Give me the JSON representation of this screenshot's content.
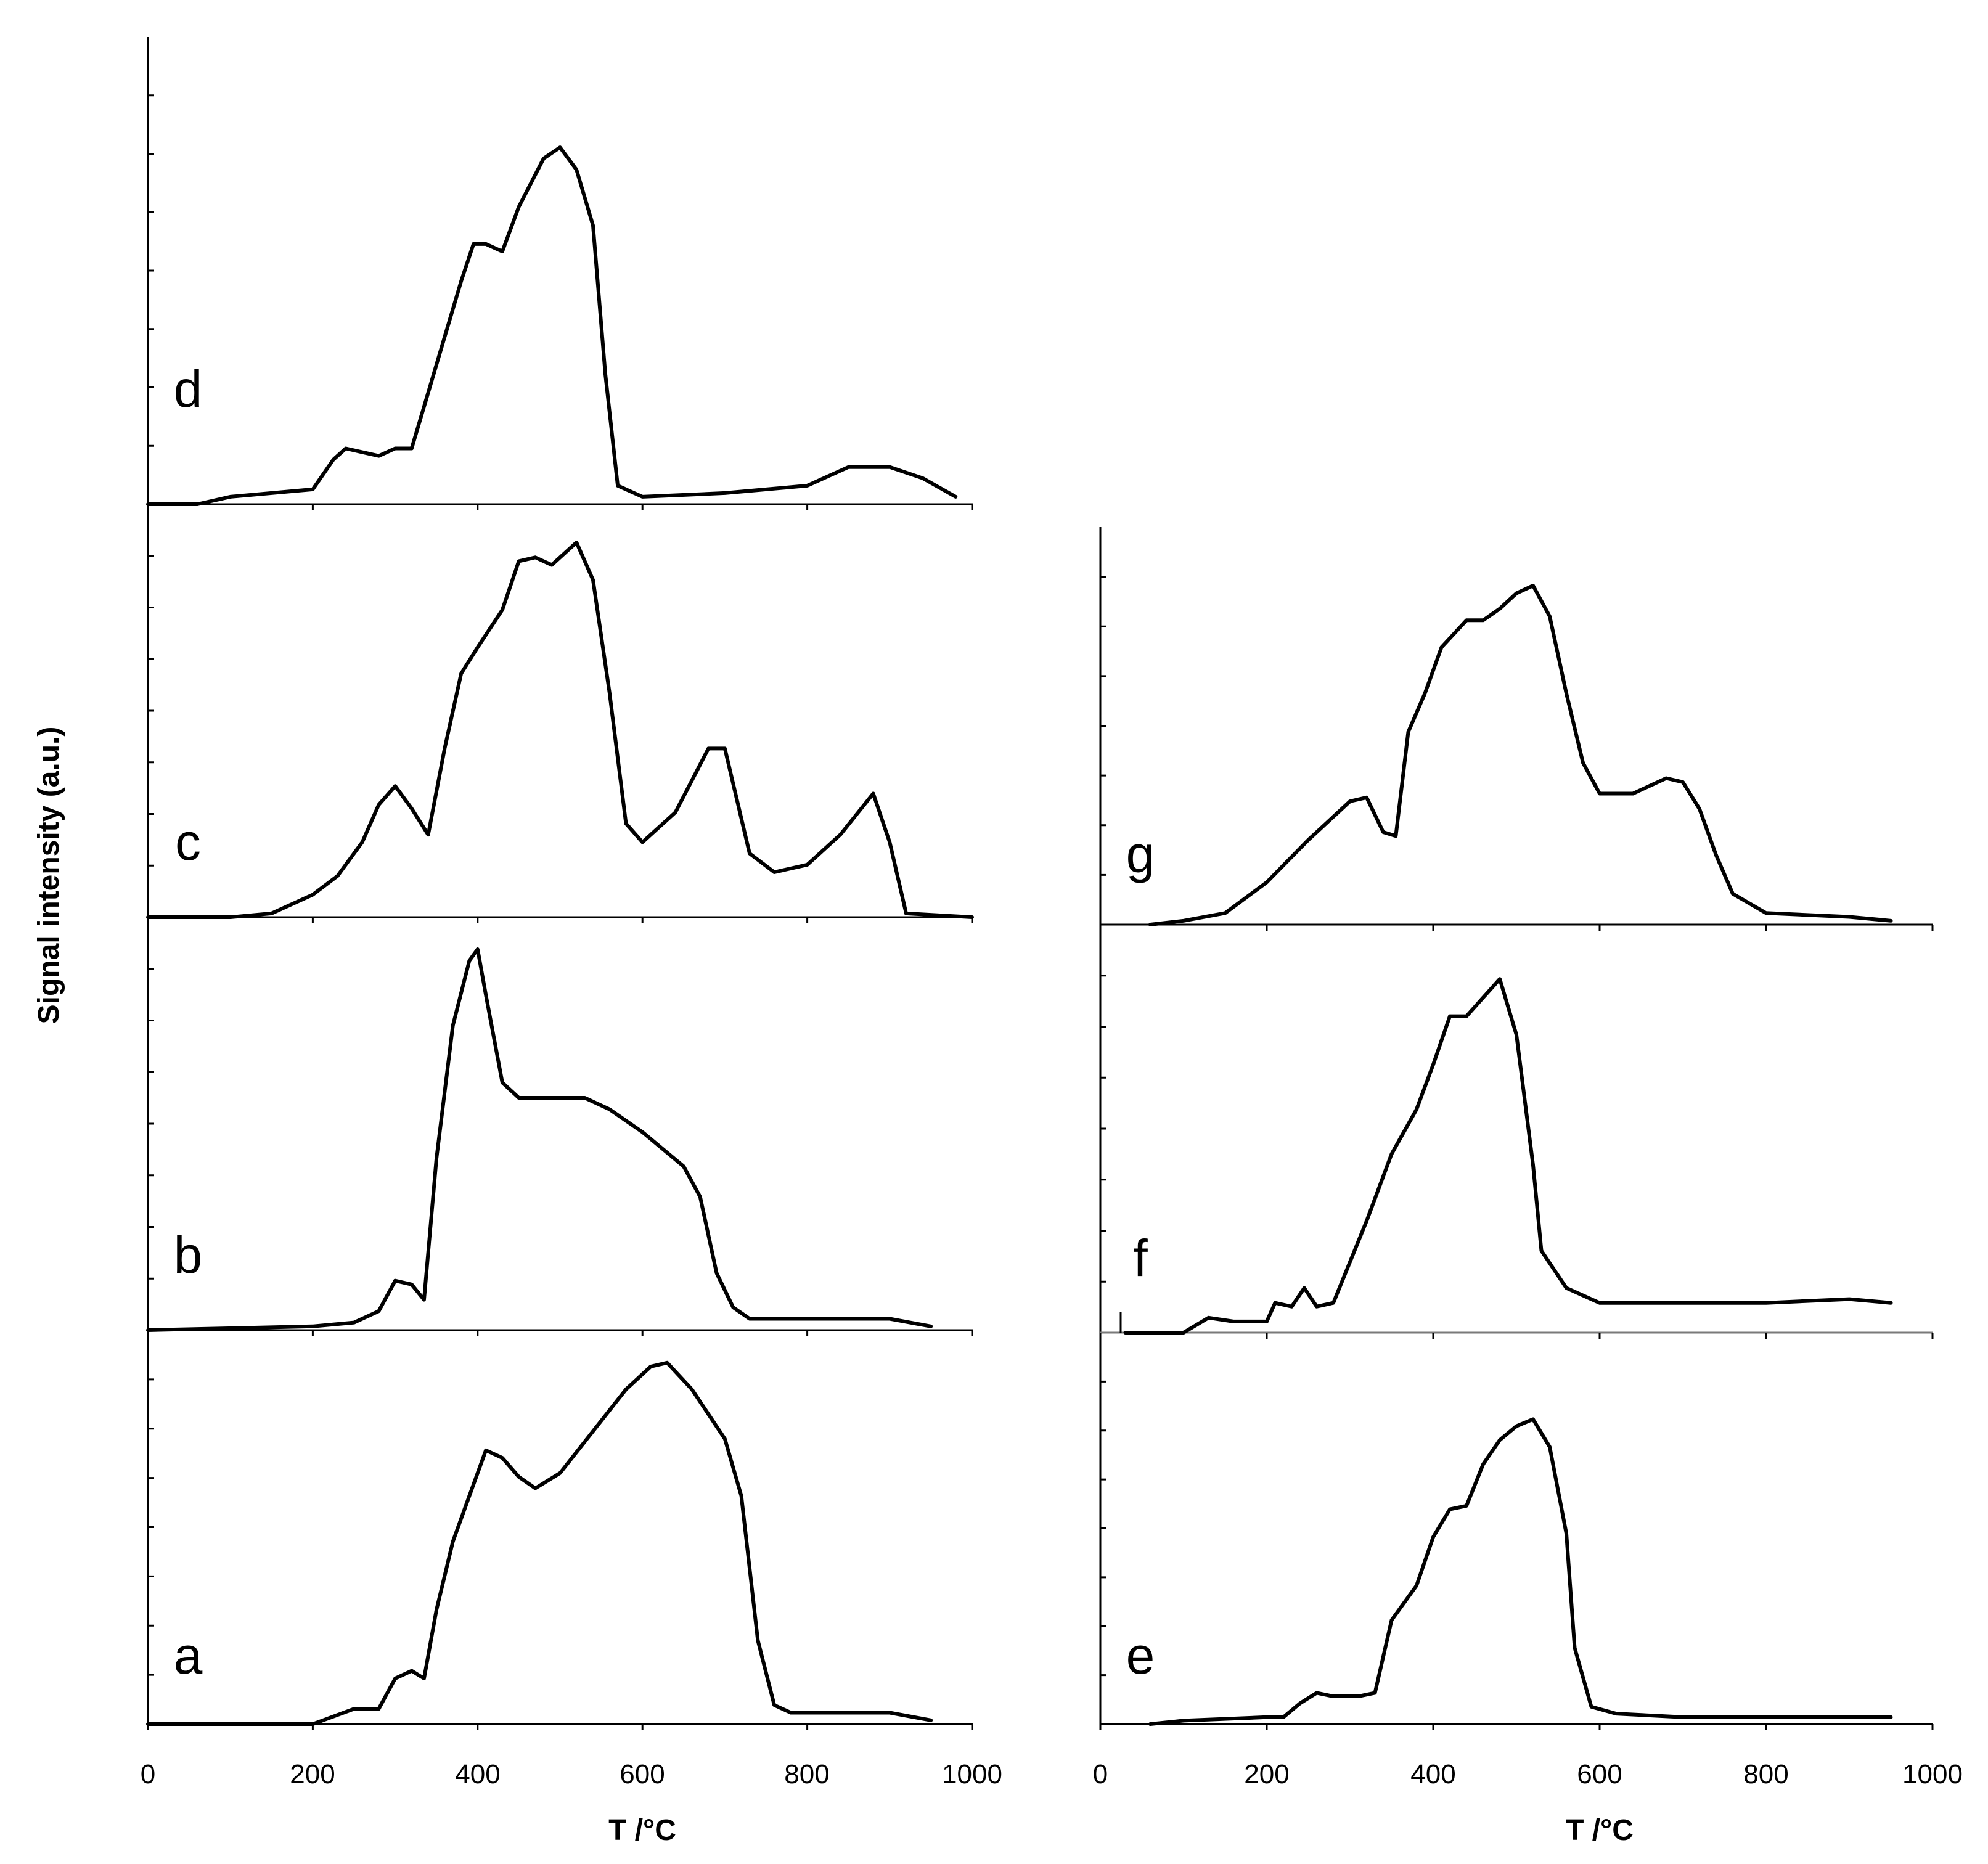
{
  "ylabel": "Signal intensity (a.u.)",
  "chart_data": [
    {
      "type": "line",
      "panel": "d",
      "xlabel": "",
      "xlim": [
        0,
        1000
      ],
      "ylim": [
        0,
        100
      ],
      "x": [
        0,
        60,
        100,
        150,
        200,
        225,
        240,
        260,
        280,
        300,
        320,
        340,
        360,
        380,
        395,
        410,
        430,
        450,
        480,
        500,
        520,
        540,
        555,
        570,
        600,
        700,
        800,
        850,
        900,
        940,
        980
      ],
      "values": [
        0,
        0,
        2,
        3,
        4,
        12,
        15,
        14,
        13,
        15,
        15,
        30,
        45,
        60,
        70,
        70,
        68,
        80,
        93,
        96,
        90,
        75,
        35,
        5,
        2,
        3,
        5,
        10,
        10,
        7,
        2
      ]
    },
    {
      "type": "line",
      "panel": "c",
      "xlabel": "",
      "xlim": [
        0,
        1000
      ],
      "ylim": [
        0,
        100
      ],
      "x": [
        0,
        100,
        150,
        200,
        230,
        260,
        280,
        300,
        320,
        340,
        360,
        380,
        400,
        430,
        450,
        470,
        490,
        520,
        540,
        560,
        580,
        600,
        640,
        680,
        700,
        730,
        760,
        800,
        840,
        880,
        900,
        920,
        1000
      ],
      "values": [
        0,
        0,
        1,
        6,
        11,
        20,
        30,
        35,
        29,
        22,
        45,
        65,
        72,
        82,
        95,
        96,
        94,
        100,
        90,
        60,
        25,
        20,
        28,
        45,
        45,
        17,
        12,
        14,
        22,
        33,
        20,
        1,
        0
      ]
    },
    {
      "type": "line",
      "panel": "b",
      "xlabel": "",
      "xlim": [
        0,
        1000
      ],
      "ylim": [
        0,
        100
      ],
      "x": [
        0,
        200,
        250,
        280,
        300,
        320,
        335,
        350,
        370,
        390,
        400,
        410,
        430,
        450,
        500,
        530,
        560,
        600,
        650,
        670,
        690,
        710,
        730,
        800,
        900,
        950
      ],
      "values": [
        0,
        1,
        2,
        5,
        13,
        12,
        8,
        45,
        80,
        97,
        100,
        88,
        65,
        61,
        61,
        61,
        58,
        52,
        43,
        35,
        15,
        6,
        3,
        3,
        3,
        1
      ]
    },
    {
      "type": "line",
      "panel": "a",
      "xlabel": "T /°C",
      "xlim": [
        0,
        1000
      ],
      "ylim": [
        0,
        100
      ],
      "x": [
        0,
        60,
        100,
        200,
        250,
        280,
        300,
        320,
        335,
        350,
        370,
        390,
        410,
        430,
        450,
        470,
        500,
        540,
        580,
        610,
        630,
        660,
        700,
        720,
        740,
        760,
        780,
        800,
        900,
        950
      ],
      "values": [
        0,
        0,
        0,
        0,
        4,
        4,
        12,
        14,
        12,
        30,
        48,
        60,
        72,
        70,
        65,
        62,
        66,
        77,
        88,
        94,
        95,
        88,
        75,
        60,
        22,
        5,
        3,
        3,
        3,
        1
      ]
    },
    {
      "type": "line",
      "panel": "g",
      "xlabel": "",
      "xlim": [
        0,
        1000
      ],
      "ylim": [
        0,
        100
      ],
      "x": [
        60,
        100,
        150,
        200,
        250,
        280,
        300,
        320,
        340,
        355,
        370,
        390,
        410,
        440,
        460,
        480,
        500,
        520,
        540,
        560,
        580,
        600,
        640,
        680,
        700,
        720,
        740,
        760,
        800,
        900,
        950
      ],
      "values": [
        0,
        1,
        3,
        11,
        22,
        28,
        32,
        33,
        24,
        23,
        50,
        60,
        72,
        79,
        79,
        82,
        86,
        88,
        80,
        60,
        42,
        34,
        34,
        38,
        37,
        30,
        18,
        8,
        3,
        2,
        1
      ]
    },
    {
      "type": "line",
      "panel": "f",
      "xlabel": "",
      "xlim": [
        0,
        1000
      ],
      "ylim": [
        0,
        100
      ],
      "x": [
        30,
        50,
        100,
        130,
        160,
        200,
        210,
        230,
        245,
        260,
        280,
        320,
        350,
        380,
        400,
        420,
        440,
        460,
        480,
        500,
        520,
        530,
        560,
        600,
        700,
        800,
        900,
        950
      ],
      "values": [
        0,
        0,
        0,
        4,
        3,
        3,
        8,
        7,
        12,
        7,
        8,
        30,
        48,
        60,
        72,
        85,
        85,
        90,
        95,
        80,
        45,
        22,
        12,
        8,
        8,
        8,
        9,
        8
      ]
    },
    {
      "type": "line",
      "panel": "e",
      "xlabel": "T /°C",
      "xlim": [
        0,
        1000
      ],
      "ylim": [
        0,
        100
      ],
      "x": [
        60,
        100,
        200,
        220,
        240,
        260,
        280,
        310,
        330,
        350,
        380,
        400,
        410,
        420,
        440,
        460,
        480,
        500,
        520,
        540,
        560,
        570,
        590,
        620,
        700,
        800,
        900,
        950
      ],
      "values": [
        0,
        1,
        2,
        2,
        6,
        9,
        8,
        8,
        9,
        30,
        40,
        54,
        58,
        62,
        63,
        75,
        82,
        86,
        88,
        80,
        55,
        22,
        5,
        3,
        2,
        2,
        2,
        2
      ]
    }
  ],
  "tick_labels": [
    "0",
    "200",
    "400",
    "600",
    "800",
    "1000"
  ],
  "panel_letters": [
    "d",
    "c",
    "b",
    "a",
    "g",
    "f",
    "e"
  ]
}
